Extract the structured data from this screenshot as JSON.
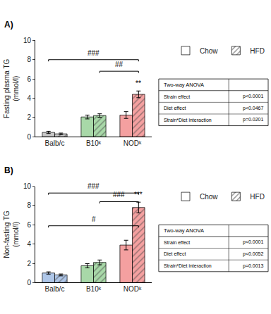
{
  "chart_data": [
    {
      "type": "bar",
      "title": "A)",
      "y_label": "Fasting plasma TG\n(mmol/l)",
      "categories": [
        "Balb/c",
        "B10ᵏ",
        "NODᵏ"
      ],
      "series": [
        {
          "name": "Chow",
          "colors": [
            "#c8c8c8",
            "#a8d8a8",
            "#f4a0a0"
          ],
          "values": [
            0.45,
            2.05,
            2.25
          ],
          "errors": [
            0.12,
            0.2,
            0.35
          ]
        },
        {
          "name": "HFD",
          "colors": [
            "#c8c8c8",
            "#a8d8a8",
            "#f4a0a0"
          ],
          "values": [
            0.3,
            2.2,
            4.4
          ],
          "errors": [
            0.08,
            0.18,
            0.35
          ]
        }
      ],
      "ylim": [
        0,
        10
      ],
      "yticks": [
        0,
        2,
        4,
        6,
        8,
        10
      ],
      "grid": false,
      "legend": "upper right",
      "brackets": [
        {
          "start": "Balb/c",
          "start_series": "Chow",
          "end": "NODᵏ",
          "end_series": "HFD",
          "y": 8.0,
          "label": "###",
          "label_y": 8.15
        },
        {
          "start": "B10ᵏ",
          "start_series": "HFD",
          "end": "NODᵏ",
          "end_series": "HFD",
          "y": 6.8,
          "label": "##",
          "label_y": 6.95
        }
      ],
      "star": {
        "category": "NODᵏ",
        "series": "HFD",
        "label": "**"
      },
      "table": {
        "title": "Two-way ANOVA",
        "rows": [
          [
            "Strain effect",
            "p<0.0001"
          ],
          [
            "Diet effect",
            "p<0.0467"
          ],
          [
            "Strain*Diet interaction",
            "p=0.0201"
          ]
        ]
      }
    },
    {
      "type": "bar",
      "title": "B)",
      "y_label": "Non-fasting TG\n(mmol/l)",
      "categories": [
        "Balb/c",
        "B10ᵏ",
        "NODᵏ"
      ],
      "series": [
        {
          "name": "Chow",
          "colors": [
            "#aec6e8",
            "#a8d8a8",
            "#f4a0a0"
          ],
          "values": [
            1.0,
            1.75,
            3.9
          ],
          "errors": [
            0.12,
            0.22,
            0.5
          ]
        },
        {
          "name": "HFD",
          "colors": [
            "#aec6e8",
            "#a8d8a8",
            "#f4a0a0"
          ],
          "values": [
            0.8,
            2.1,
            7.8
          ],
          "errors": [
            0.1,
            0.25,
            0.55
          ]
        }
      ],
      "ylim": [
        0,
        10
      ],
      "yticks": [
        0,
        2,
        4,
        6,
        8,
        10
      ],
      "grid": false,
      "legend": "upper right",
      "brackets": [
        {
          "start": "Balb/c",
          "start_series": "Chow",
          "end": "NODᵏ",
          "end_series": "HFD",
          "y": 9.3,
          "label": "###",
          "label_y": 9.45
        },
        {
          "start": "B10ᵏ",
          "start_series": "HFD",
          "end": "NODᵏ",
          "end_series": "HFD",
          "y": 8.4,
          "label": "###",
          "label_y": 8.55
        },
        {
          "start": "Balb/c",
          "start_series": "Chow",
          "end": "NODᵏ",
          "end_series": "HFD",
          "y": 5.9,
          "label": "#",
          "label_y": 6.05
        }
      ],
      "star": {
        "category": "NODᵏ",
        "series": "HFD",
        "label": "***"
      },
      "table": {
        "title": "Two-way ANOVA",
        "rows": [
          [
            "Strain effect",
            "p<0.0001"
          ],
          [
            "Diet effect",
            "p<0.0052"
          ],
          [
            "Strain*Diet interaction",
            "p=0.0013"
          ]
        ]
      }
    }
  ]
}
